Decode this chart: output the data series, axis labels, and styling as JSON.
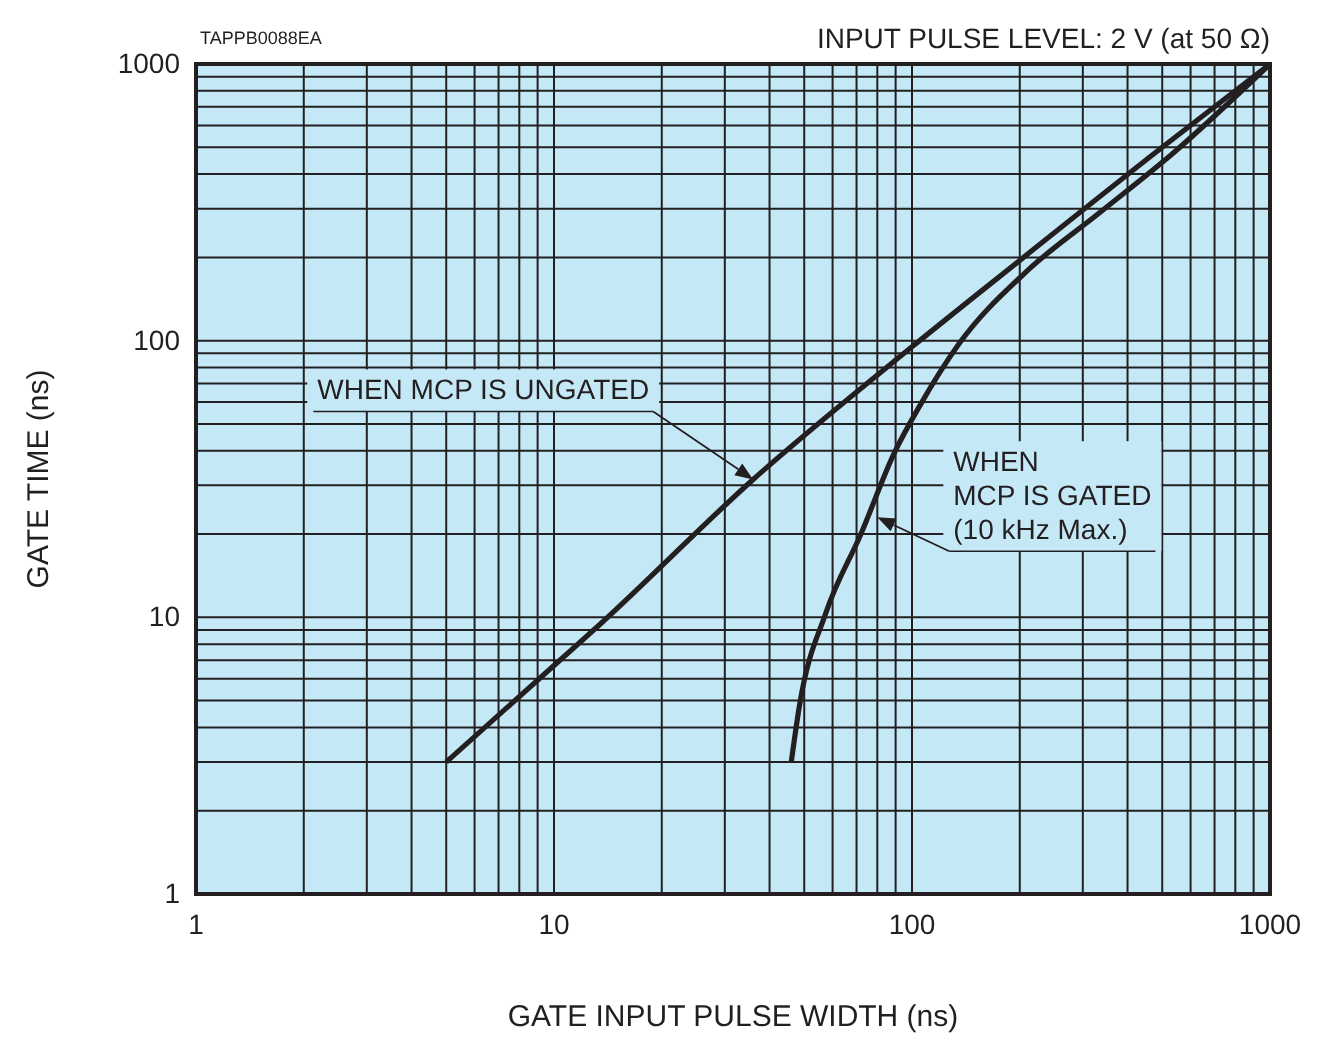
{
  "chart_data": {
    "type": "line",
    "title": "INPUT PULSE LEVEL: 2 V (at 50 Ω)",
    "xlabel": "GATE INPUT PULSE WIDTH (ns)",
    "ylabel": "GATE TIME (ns)",
    "log": "xy",
    "grid": true,
    "marker": "none",
    "line_style": "solid",
    "xlim": [
      1,
      1000
    ],
    "ylim": [
      1,
      1000
    ],
    "xticks": [
      1,
      10,
      100,
      1000
    ],
    "yticks": [
      1,
      10,
      100,
      1000
    ],
    "series": [
      {
        "color": "#231f20",
        "x": [
          5,
          10,
          13.4,
          36,
          100,
          200,
          500,
          1000
        ],
        "values": [
          3,
          6.7,
          9.4,
          31.5,
          95,
          195,
          500,
          1000
        ]
      },
      {
        "color": "#231f20",
        "x": [
          46,
          48.5,
          57.5,
          72,
          89,
          105,
          135,
          208,
          334,
          540,
          1000
        ],
        "values": [
          3,
          4.8,
          10.4,
          20,
          39,
          58,
          97,
          177,
          290,
          480,
          1000
        ]
      }
    ],
    "annotations": [
      "TAPPB0088EA",
      {
        "text": "WHEN MCP IS UNGATED",
        "x": 36,
        "y": 31.5
      },
      {
        "text": "WHEN\nMCP IS GATED\n(10 kHz Max.)",
        "x": 80,
        "y": 23
      }
    ]
  }
}
